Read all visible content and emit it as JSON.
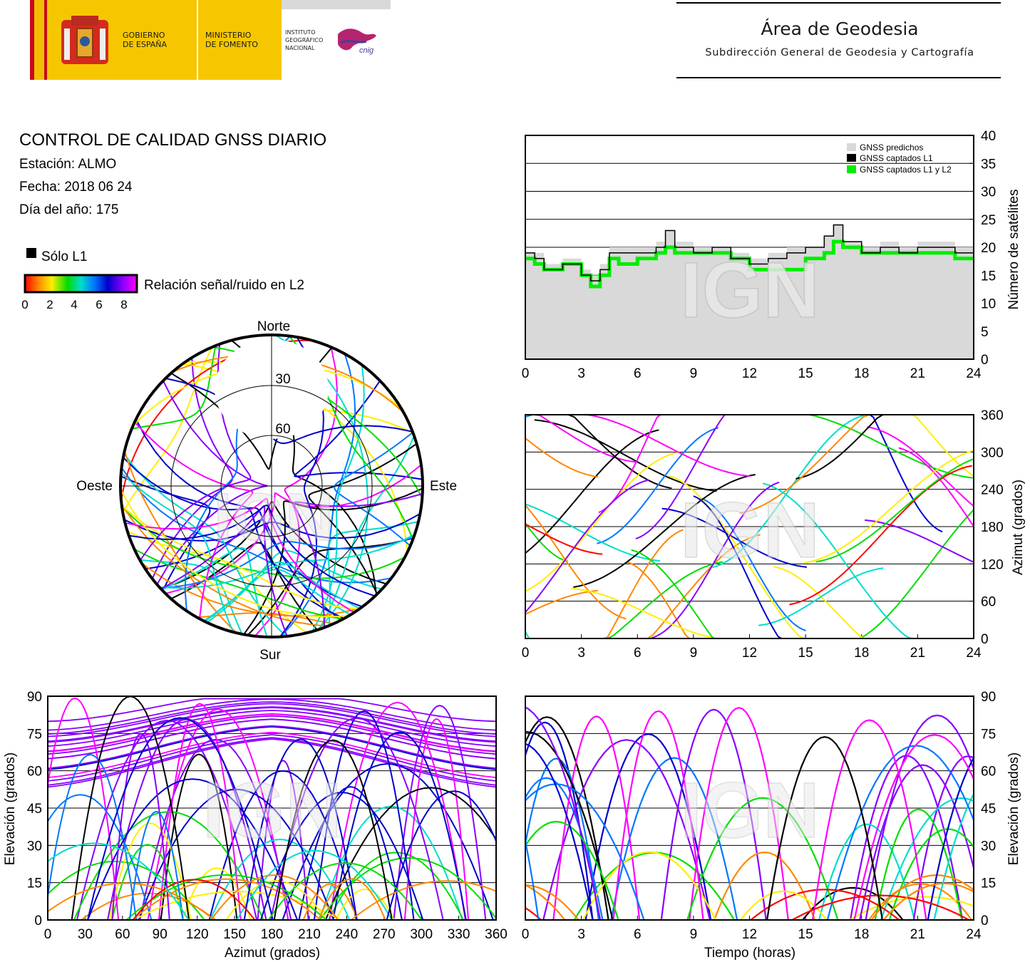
{
  "header": {
    "gov_line1": "GOBIERNO",
    "gov_line2": "DE ESPAÑA",
    "ministry_line1": "MINISTERIO",
    "ministry_line2": "DE FOMENTO",
    "institute_line1": "INSTITUTO",
    "institute_line2": "GEOGRÁFICO",
    "institute_line3": "NACIONAL",
    "cnig": "cnig",
    "area_title": "Área de Geodesia",
    "area_subtitle": "Subdirección General de Geodesia y Cartografía"
  },
  "info": {
    "title": "CONTROL DE CALIDAD GNSS DIARIO",
    "station": "Estación: ALMO",
    "date": "Fecha: 2018 06 24",
    "doy": "Día del año: 175",
    "only_l1": "Sólo L1",
    "snr_label": "Relación señal/ruido en L2",
    "snr_ticks": [
      "0",
      "2",
      "4",
      "6",
      "8"
    ]
  },
  "watermark": "IGN",
  "colors": {
    "predicted": "#d9d9d9",
    "l1": "#000000",
    "l1l2": "#00ee00",
    "snr_scale": [
      "#ff0000",
      "#ff8800",
      "#ffee00",
      "#00dd00",
      "#00ddcc",
      "#0077ff",
      "#0000cc",
      "#8800ff",
      "#ff00ff"
    ]
  },
  "chart_data": [
    {
      "id": "satellite-count",
      "type": "line",
      "xticks": [
        "0",
        "3",
        "6",
        "9",
        "12",
        "15",
        "18",
        "21",
        "24"
      ],
      "yticks": [
        "0",
        "5",
        "10",
        "15",
        "20",
        "25",
        "30",
        "35",
        "40"
      ],
      "xlim": [
        0,
        24
      ],
      "ylim": [
        0,
        40
      ],
      "ylabel": "Número de satélites",
      "legend_position": "top-right",
      "series": [
        {
          "name": "GNSS predichos",
          "color": "#d9d9d9",
          "x": [
            0,
            0.5,
            1,
            2,
            3,
            3.5,
            4,
            4.5,
            5,
            6,
            7,
            7.5,
            8,
            9,
            10,
            11,
            12,
            13,
            14,
            15,
            16,
            16.5,
            17,
            18,
            19,
            20,
            21,
            22,
            23,
            24
          ],
          "values": [
            19,
            19,
            17,
            18,
            16,
            15,
            17,
            20,
            20,
            20,
            21,
            23,
            21,
            20,
            20,
            19,
            18,
            19,
            20,
            20,
            22,
            24,
            21,
            20,
            21,
            20,
            21,
            21,
            20,
            20
          ]
        },
        {
          "name": "GNSS captados L1",
          "color": "#000000",
          "x": [
            0,
            0.5,
            1,
            2,
            3,
            3.5,
            4,
            4.5,
            5,
            6,
            7,
            7.5,
            8,
            9,
            10,
            11,
            12,
            13,
            14,
            15,
            16,
            16.5,
            17,
            18,
            19,
            20,
            21,
            22,
            23,
            24
          ],
          "values": [
            19,
            18,
            16,
            17,
            15,
            14,
            16,
            19,
            19,
            19,
            20,
            23,
            20,
            19,
            20,
            18,
            17,
            18,
            19,
            20,
            22,
            24,
            21,
            19,
            20,
            19,
            20,
            20,
            19,
            19
          ]
        },
        {
          "name": "GNSS captados L1 y L2",
          "color": "#00ee00",
          "x": [
            0,
            0.5,
            1,
            2,
            3,
            3.5,
            4,
            4.5,
            5,
            6,
            7,
            7.5,
            8,
            9,
            10,
            11,
            12,
            13,
            14,
            15,
            16,
            16.5,
            17,
            18,
            19,
            20,
            21,
            22,
            23,
            24
          ],
          "values": [
            18,
            17,
            16,
            17,
            15,
            13,
            15,
            18,
            17,
            18,
            19,
            20,
            19,
            19,
            19,
            18,
            16,
            16,
            16,
            18,
            19,
            21,
            20,
            19,
            19,
            19,
            19,
            19,
            18,
            18
          ]
        }
      ]
    },
    {
      "id": "sky-plot",
      "type": "scatter",
      "directions": {
        "north": "Norte",
        "south": "Sur",
        "west": "Oeste",
        "east": "Este"
      },
      "ring_labels": [
        "30",
        "60"
      ]
    },
    {
      "id": "azimuth-time",
      "type": "scatter",
      "xticks": [
        "0",
        "3",
        "6",
        "9",
        "12",
        "15",
        "18",
        "21",
        "24"
      ],
      "yticks": [
        "0",
        "60",
        "120",
        "180",
        "240",
        "300",
        "360"
      ],
      "xlim": [
        0,
        24
      ],
      "ylim": [
        0,
        360
      ],
      "ylabel": "Azimut (grados)"
    },
    {
      "id": "elevation-azimuth",
      "type": "scatter",
      "xticks": [
        "0",
        "30",
        "60",
        "90",
        "120",
        "150",
        "180",
        "210",
        "240",
        "270",
        "300",
        "330",
        "360"
      ],
      "yticks": [
        "0",
        "15",
        "30",
        "45",
        "60",
        "75",
        "90"
      ],
      "xlim": [
        0,
        360
      ],
      "ylim": [
        0,
        90
      ],
      "xlabel": "Azimut (grados)",
      "ylabel": "Elevación (grados)"
    },
    {
      "id": "elevation-time",
      "type": "scatter",
      "xticks": [
        "0",
        "3",
        "6",
        "9",
        "12",
        "15",
        "18",
        "21",
        "24"
      ],
      "yticks": [
        "0",
        "15",
        "30",
        "45",
        "60",
        "75",
        "90"
      ],
      "xlim": [
        0,
        24
      ],
      "ylim": [
        0,
        90
      ],
      "xlabel": "Tiempo (horas)",
      "ylabel": "Elevación (grados)"
    }
  ]
}
